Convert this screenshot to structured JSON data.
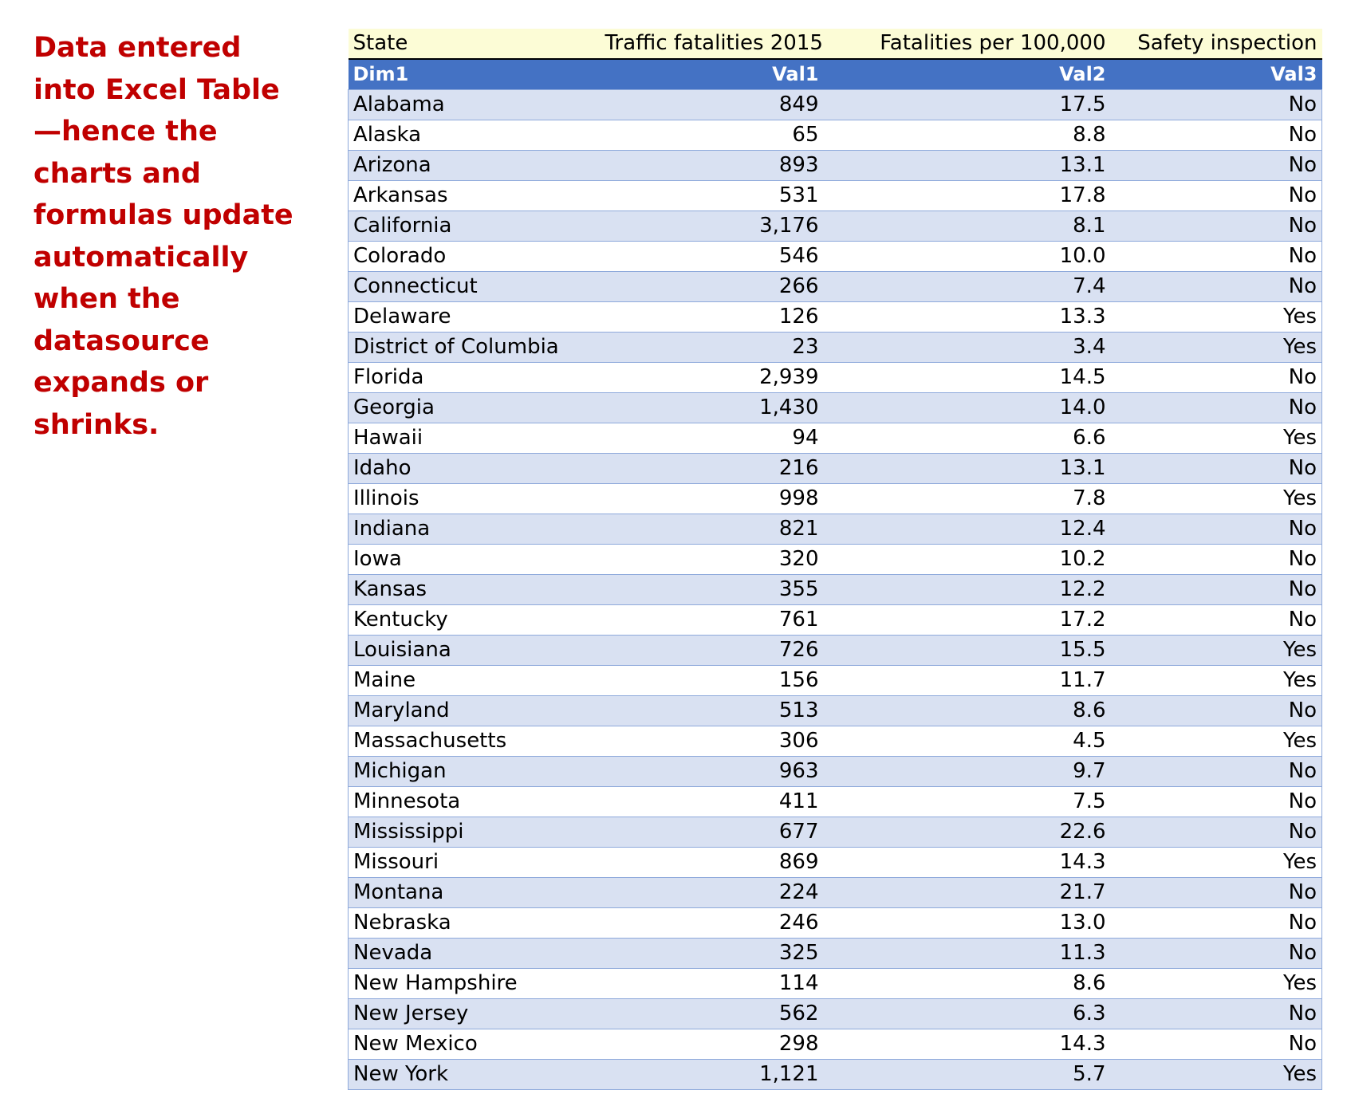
{
  "side_note": "Data entered into Excel Table—hence the charts and formulas update automatically when the datasource expands or shrinks.",
  "table": {
    "title_row": [
      "State",
      "Traffic fatalities 2015",
      "Fatalities per 100,000",
      "Safety inspection"
    ],
    "header_row": [
      "Dim1",
      "Val1",
      "Val2",
      "Val3"
    ],
    "rows": [
      [
        "Alabama",
        "849",
        "17.5",
        "No"
      ],
      [
        "Alaska",
        "65",
        "8.8",
        "No"
      ],
      [
        "Arizona",
        "893",
        "13.1",
        "No"
      ],
      [
        "Arkansas",
        "531",
        "17.8",
        "No"
      ],
      [
        "California",
        "3,176",
        "8.1",
        "No"
      ],
      [
        "Colorado",
        "546",
        "10.0",
        "No"
      ],
      [
        "Connecticut",
        "266",
        "7.4",
        "No"
      ],
      [
        "Delaware",
        "126",
        "13.3",
        "Yes"
      ],
      [
        "District of Columbia",
        "23",
        "3.4",
        "Yes"
      ],
      [
        "Florida",
        "2,939",
        "14.5",
        "No"
      ],
      [
        "Georgia",
        "1,430",
        "14.0",
        "No"
      ],
      [
        "Hawaii",
        "94",
        "6.6",
        "Yes"
      ],
      [
        "Idaho",
        "216",
        "13.1",
        "No"
      ],
      [
        "Illinois",
        "998",
        "7.8",
        "Yes"
      ],
      [
        "Indiana",
        "821",
        "12.4",
        "No"
      ],
      [
        "Iowa",
        "320",
        "10.2",
        "No"
      ],
      [
        "Kansas",
        "355",
        "12.2",
        "No"
      ],
      [
        "Kentucky",
        "761",
        "17.2",
        "No"
      ],
      [
        "Louisiana",
        "726",
        "15.5",
        "Yes"
      ],
      [
        "Maine",
        "156",
        "11.7",
        "Yes"
      ],
      [
        "Maryland",
        "513",
        "8.6",
        "No"
      ],
      [
        "Massachusetts",
        "306",
        "4.5",
        "Yes"
      ],
      [
        "Michigan",
        "963",
        "9.7",
        "No"
      ],
      [
        "Minnesota",
        "411",
        "7.5",
        "No"
      ],
      [
        "Mississippi",
        "677",
        "22.6",
        "No"
      ],
      [
        "Missouri",
        "869",
        "14.3",
        "Yes"
      ],
      [
        "Montana",
        "224",
        "21.7",
        "No"
      ],
      [
        "Nebraska",
        "246",
        "13.0",
        "No"
      ],
      [
        "Nevada",
        "325",
        "11.3",
        "No"
      ],
      [
        "New Hampshire",
        "114",
        "8.6",
        "Yes"
      ],
      [
        "New Jersey",
        "562",
        "6.3",
        "No"
      ],
      [
        "New Mexico",
        "298",
        "14.3",
        "No"
      ],
      [
        "New York",
        "1,121",
        "5.7",
        "Yes"
      ]
    ]
  },
  "colors": {
    "note_text": "#c00000",
    "title_row_bg": "#fcfcd6",
    "header_bg": "#4472c4",
    "band_bg": "#d9e1f2",
    "grid_line": "#8ea9db"
  }
}
